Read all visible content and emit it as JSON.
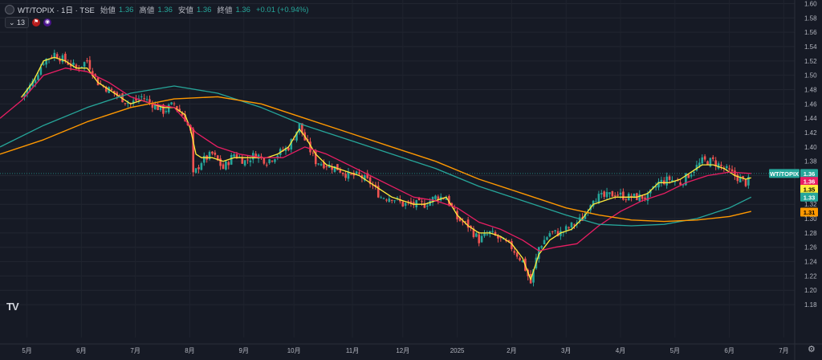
{
  "header": {
    "symbol": "WT/TOPIX · 1日 · TSE",
    "open_label": "始値",
    "open": "1.36",
    "high_label": "高値",
    "high": "1.36",
    "low_label": "安値",
    "low": "1.36",
    "close_label": "終値",
    "close": "1.36",
    "change": "+0.01 (+0.94%)"
  },
  "indicator": {
    "count": "13",
    "icon1": "flag-icon",
    "icon2": "eye-icon"
  },
  "price_labels": {
    "symbol": "WT/TOPIX",
    "last": "1.36",
    "ma_red": "1.36",
    "ma_yellow": "1.35",
    "ma_teal": "1.33",
    "ma_orange": "1.31",
    "colors": {
      "last": "#26a69a",
      "ma_red": "#e91e63",
      "ma_yellow": "#ffeb3b",
      "ma_teal": "#26a69a",
      "ma_orange": "#ff9800"
    }
  },
  "chart_data": {
    "type": "line",
    "y_ticks": [
      "1.18",
      "1.20",
      "1.22",
      "1.24",
      "1.26",
      "1.28",
      "1.30",
      "1.32",
      "1.34",
      "1.36",
      "1.38",
      "1.40",
      "1.42",
      "1.44",
      "1.46",
      "1.48",
      "1.50",
      "1.52",
      "1.54",
      "1.56",
      "1.58",
      "1.60"
    ],
    "ylim": [
      1.17,
      1.605
    ],
    "x_ticks": [
      {
        "label": "5月",
        "t": 0.095
      },
      {
        "label": "6月",
        "t": 1.095
      },
      {
        "label": "7月",
        "t": 2.087
      },
      {
        "label": "8月",
        "t": 3.087
      },
      {
        "label": "9月",
        "t": 4.08
      },
      {
        "label": "10月",
        "t": 5.0
      },
      {
        "label": "11月",
        "t": 6.075
      },
      {
        "label": "12月",
        "t": 7.0
      },
      {
        "label": "2025",
        "t": 8.0
      },
      {
        "label": "2月",
        "t": 9.0
      },
      {
        "label": "3月",
        "t": 10.0
      },
      {
        "label": "4月",
        "t": 11.0
      },
      {
        "label": "5月",
        "t": 12.0
      },
      {
        "label": "6月",
        "t": 13.0
      },
      {
        "label": "7月",
        "t": 14.0
      }
    ],
    "xlim": [
      -0.4,
      14.2
    ],
    "price_path": [
      [
        0.0,
        1.47
      ],
      [
        0.2,
        1.49
      ],
      [
        0.4,
        1.52
      ],
      [
        0.6,
        1.53
      ],
      [
        0.8,
        1.52
      ],
      [
        1.0,
        1.51
      ],
      [
        1.2,
        1.52
      ],
      [
        1.4,
        1.49
      ],
      [
        1.6,
        1.48
      ],
      [
        1.8,
        1.47
      ],
      [
        2.0,
        1.46
      ],
      [
        2.2,
        1.47
      ],
      [
        2.4,
        1.46
      ],
      [
        2.6,
        1.45
      ],
      [
        2.8,
        1.46
      ],
      [
        3.0,
        1.44
      ],
      [
        3.1,
        1.42
      ],
      [
        3.15,
        1.36
      ],
      [
        3.3,
        1.38
      ],
      [
        3.5,
        1.39
      ],
      [
        3.7,
        1.37
      ],
      [
        3.9,
        1.39
      ],
      [
        4.1,
        1.38
      ],
      [
        4.3,
        1.39
      ],
      [
        4.5,
        1.38
      ],
      [
        4.7,
        1.39
      ],
      [
        4.9,
        1.4
      ],
      [
        5.1,
        1.43
      ],
      [
        5.2,
        1.41
      ],
      [
        5.4,
        1.38
      ],
      [
        5.6,
        1.375
      ],
      [
        5.8,
        1.37
      ],
      [
        6.0,
        1.36
      ],
      [
        6.2,
        1.36
      ],
      [
        6.4,
        1.35
      ],
      [
        6.6,
        1.33
      ],
      [
        6.8,
        1.33
      ],
      [
        7.0,
        1.32
      ],
      [
        7.2,
        1.32
      ],
      [
        7.4,
        1.32
      ],
      [
        7.6,
        1.33
      ],
      [
        7.8,
        1.33
      ],
      [
        8.0,
        1.3
      ],
      [
        8.2,
        1.29
      ],
      [
        8.4,
        1.27
      ],
      [
        8.6,
        1.28
      ],
      [
        8.8,
        1.27
      ],
      [
        9.0,
        1.26
      ],
      [
        9.2,
        1.24
      ],
      [
        9.35,
        1.21
      ],
      [
        9.5,
        1.26
      ],
      [
        9.7,
        1.28
      ],
      [
        9.9,
        1.28
      ],
      [
        10.1,
        1.29
      ],
      [
        10.3,
        1.3
      ],
      [
        10.5,
        1.33
      ],
      [
        10.7,
        1.33
      ],
      [
        10.9,
        1.335
      ],
      [
        11.1,
        1.33
      ],
      [
        11.3,
        1.33
      ],
      [
        11.5,
        1.33
      ],
      [
        11.7,
        1.35
      ],
      [
        11.9,
        1.355
      ],
      [
        12.1,
        1.35
      ],
      [
        12.3,
        1.365
      ],
      [
        12.5,
        1.38
      ],
      [
        12.7,
        1.38
      ],
      [
        12.9,
        1.37
      ],
      [
        13.1,
        1.36
      ],
      [
        13.3,
        1.35
      ],
      [
        13.4,
        1.355
      ]
    ],
    "series": [
      {
        "color": "#ffeb3b",
        "width": 1.3,
        "points": [
          [
            0.0,
            1.47
          ],
          [
            0.2,
            1.49
          ],
          [
            0.4,
            1.52
          ],
          [
            0.6,
            1.525
          ],
          [
            0.8,
            1.52
          ],
          [
            1.0,
            1.51
          ],
          [
            1.2,
            1.51
          ],
          [
            1.4,
            1.49
          ],
          [
            1.6,
            1.48
          ],
          [
            1.8,
            1.47
          ],
          [
            2.0,
            1.46
          ],
          [
            2.2,
            1.465
          ],
          [
            2.4,
            1.46
          ],
          [
            2.6,
            1.455
          ],
          [
            2.8,
            1.455
          ],
          [
            3.0,
            1.445
          ],
          [
            3.1,
            1.425
          ],
          [
            3.2,
            1.39
          ],
          [
            3.3,
            1.385
          ],
          [
            3.5,
            1.385
          ],
          [
            3.7,
            1.38
          ],
          [
            3.9,
            1.385
          ],
          [
            4.1,
            1.385
          ],
          [
            4.3,
            1.385
          ],
          [
            4.5,
            1.385
          ],
          [
            4.7,
            1.39
          ],
          [
            4.9,
            1.4
          ],
          [
            5.1,
            1.425
          ],
          [
            5.2,
            1.415
          ],
          [
            5.4,
            1.39
          ],
          [
            5.6,
            1.375
          ],
          [
            5.8,
            1.37
          ],
          [
            6.0,
            1.365
          ],
          [
            6.2,
            1.36
          ],
          [
            6.4,
            1.35
          ],
          [
            6.6,
            1.34
          ],
          [
            6.8,
            1.33
          ],
          [
            7.0,
            1.325
          ],
          [
            7.2,
            1.32
          ],
          [
            7.4,
            1.32
          ],
          [
            7.6,
            1.325
          ],
          [
            7.8,
            1.33
          ],
          [
            8.0,
            1.305
          ],
          [
            8.2,
            1.29
          ],
          [
            8.4,
            1.28
          ],
          [
            8.6,
            1.28
          ],
          [
            8.8,
            1.275
          ],
          [
            9.0,
            1.265
          ],
          [
            9.2,
            1.245
          ],
          [
            9.35,
            1.215
          ],
          [
            9.5,
            1.25
          ],
          [
            9.7,
            1.27
          ],
          [
            9.9,
            1.28
          ],
          [
            10.1,
            1.285
          ],
          [
            10.3,
            1.3
          ],
          [
            10.5,
            1.32
          ],
          [
            10.7,
            1.325
          ],
          [
            10.9,
            1.33
          ],
          [
            11.1,
            1.33
          ],
          [
            11.3,
            1.33
          ],
          [
            11.5,
            1.335
          ],
          [
            11.7,
            1.35
          ],
          [
            11.9,
            1.35
          ],
          [
            12.1,
            1.355
          ],
          [
            12.3,
            1.365
          ],
          [
            12.5,
            1.375
          ],
          [
            12.7,
            1.375
          ],
          [
            12.9,
            1.37
          ],
          [
            13.1,
            1.36
          ],
          [
            13.3,
            1.355
          ],
          [
            13.4,
            1.357
          ]
        ]
      },
      {
        "color": "#e91e63",
        "width": 1.3,
        "points": [
          [
            -0.4,
            1.44
          ],
          [
            0.0,
            1.465
          ],
          [
            0.4,
            1.5
          ],
          [
            0.8,
            1.51
          ],
          [
            1.2,
            1.505
          ],
          [
            1.6,
            1.49
          ],
          [
            2.0,
            1.47
          ],
          [
            2.4,
            1.46
          ],
          [
            2.8,
            1.455
          ],
          [
            3.2,
            1.42
          ],
          [
            3.6,
            1.4
          ],
          [
            4.0,
            1.39
          ],
          [
            4.4,
            1.385
          ],
          [
            4.8,
            1.385
          ],
          [
            5.2,
            1.4
          ],
          [
            5.6,
            1.39
          ],
          [
            6.0,
            1.375
          ],
          [
            6.4,
            1.36
          ],
          [
            6.8,
            1.345
          ],
          [
            7.2,
            1.33
          ],
          [
            7.6,
            1.325
          ],
          [
            8.0,
            1.315
          ],
          [
            8.4,
            1.295
          ],
          [
            8.8,
            1.285
          ],
          [
            9.2,
            1.27
          ],
          [
            9.5,
            1.255
          ],
          [
            9.8,
            1.26
          ],
          [
            10.2,
            1.265
          ],
          [
            10.6,
            1.29
          ],
          [
            11.0,
            1.31
          ],
          [
            11.4,
            1.325
          ],
          [
            11.8,
            1.335
          ],
          [
            12.2,
            1.35
          ],
          [
            12.6,
            1.36
          ],
          [
            13.0,
            1.365
          ],
          [
            13.4,
            1.363
          ]
        ]
      },
      {
        "color": "#26a69a",
        "width": 1.3,
        "points": [
          [
            -0.4,
            1.4
          ],
          [
            0.4,
            1.43
          ],
          [
            1.2,
            1.455
          ],
          [
            2.0,
            1.475
          ],
          [
            2.8,
            1.485
          ],
          [
            3.6,
            1.475
          ],
          [
            4.4,
            1.455
          ],
          [
            5.2,
            1.43
          ],
          [
            6.0,
            1.41
          ],
          [
            6.8,
            1.39
          ],
          [
            7.6,
            1.37
          ],
          [
            8.4,
            1.345
          ],
          [
            9.2,
            1.325
          ],
          [
            10.0,
            1.305
          ],
          [
            10.6,
            1.292
          ],
          [
            11.2,
            1.29
          ],
          [
            11.8,
            1.292
          ],
          [
            12.4,
            1.3
          ],
          [
            13.0,
            1.315
          ],
          [
            13.4,
            1.33
          ]
        ]
      },
      {
        "color": "#ff9800",
        "width": 1.4,
        "points": [
          [
            -0.4,
            1.39
          ],
          [
            0.4,
            1.41
          ],
          [
            1.2,
            1.435
          ],
          [
            2.0,
            1.455
          ],
          [
            2.8,
            1.467
          ],
          [
            3.6,
            1.47
          ],
          [
            4.4,
            1.46
          ],
          [
            5.2,
            1.44
          ],
          [
            6.0,
            1.42
          ],
          [
            6.8,
            1.4
          ],
          [
            7.6,
            1.38
          ],
          [
            8.4,
            1.355
          ],
          [
            9.2,
            1.335
          ],
          [
            10.0,
            1.315
          ],
          [
            10.6,
            1.305
          ],
          [
            11.2,
            1.298
          ],
          [
            11.8,
            1.296
          ],
          [
            12.4,
            1.298
          ],
          [
            13.0,
            1.303
          ],
          [
            13.4,
            1.31
          ]
        ]
      }
    ]
  }
}
